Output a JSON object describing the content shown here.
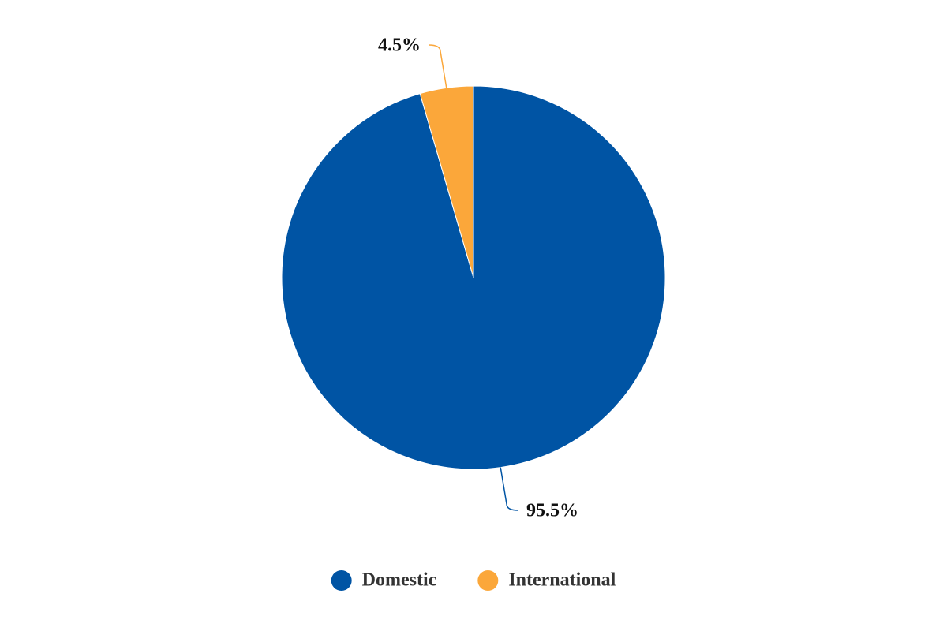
{
  "chart_data": {
    "type": "pie",
    "categories": [
      "Domestic",
      "International"
    ],
    "values": [
      95.5,
      4.5
    ],
    "value_labels": [
      "95.5%",
      "4.5%"
    ],
    "colors": [
      "#0054a4",
      "#fba73a"
    ],
    "legend": "bottom"
  }
}
